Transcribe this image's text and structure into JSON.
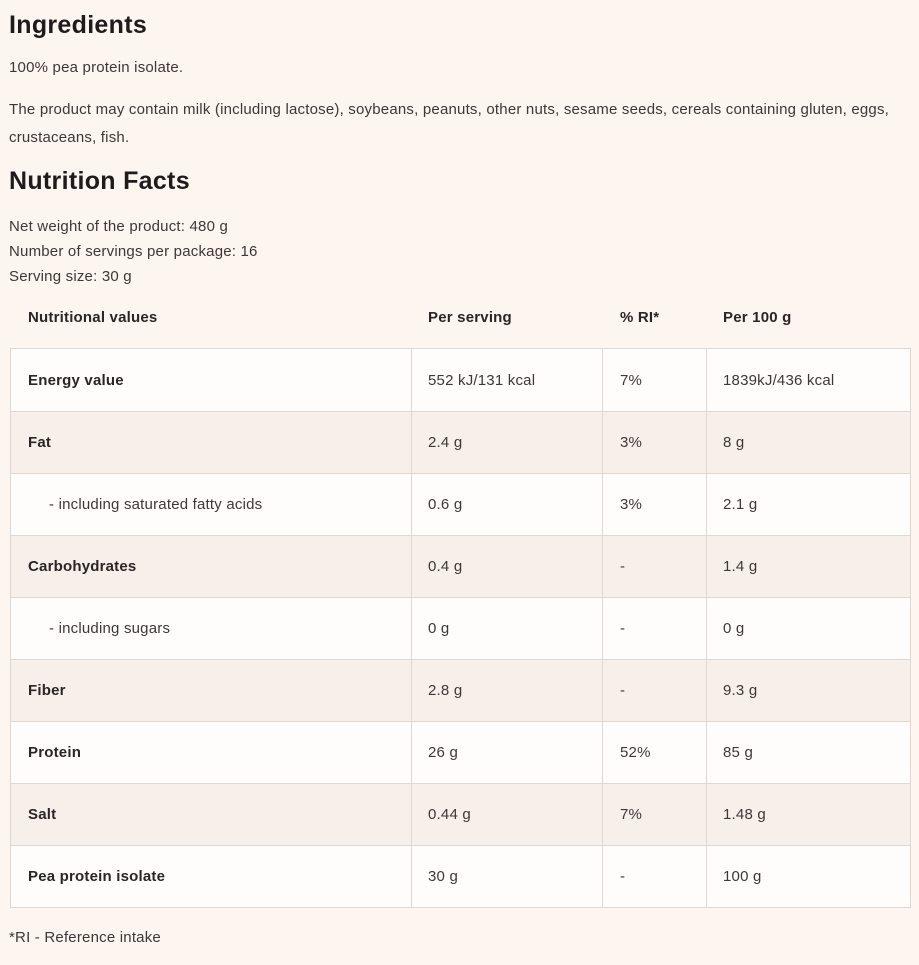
{
  "colors": {
    "page_bg": "#fcf5f0",
    "row_bg": "#fffdfc",
    "row_alt_bg": "#f6efea",
    "table_border": "#e0d7d1",
    "heading_text": "#1d1b1c",
    "body_text": "#3d3738"
  },
  "ingredients": {
    "title": "Ingredients",
    "composition": "100% pea protein isolate.",
    "allergen_note": "The product may contain milk (including lactose), soybeans, peanuts, other nuts, sesame seeds, cereals containing gluten, eggs, crustaceans, fish."
  },
  "nutrition": {
    "title": "Nutrition Facts",
    "net_weight": "Net weight of the product: 480 g",
    "servings_per_package": "Number of servings per package: 16",
    "serving_size": "Serving size: 30 g",
    "footnote": "*RI - Reference intake",
    "table": {
      "headers": [
        "Nutritional values",
        "Per serving",
        "% RI*",
        "Per 100 g"
      ],
      "rows": [
        {
          "label": "Energy value",
          "per_serving": "552 kJ/131 kcal",
          "ri": "7%",
          "per_100g": "1839kJ/436 kcal",
          "indent": false
        },
        {
          "label": "Fat",
          "per_serving": "2.4 g",
          "ri": "3%",
          "per_100g": "8 g",
          "indent": false
        },
        {
          "label": "- including saturated fatty acids",
          "per_serving": "0.6 g",
          "ri": "3%",
          "per_100g": "2.1 g",
          "indent": true
        },
        {
          "label": "Carbohydrates",
          "per_serving": "0.4 g",
          "ri": "-",
          "per_100g": "1.4 g",
          "indent": false
        },
        {
          "label": "- including sugars",
          "per_serving": "0 g",
          "ri": "-",
          "per_100g": "0 g",
          "indent": true
        },
        {
          "label": "Fiber",
          "per_serving": "2.8 g",
          "ri": "-",
          "per_100g": "9.3 g",
          "indent": false
        },
        {
          "label": "Protein",
          "per_serving": "26 g",
          "ri": "52%",
          "per_100g": "85 g",
          "indent": false
        },
        {
          "label": "Salt",
          "per_serving": "0.44 g",
          "ri": "7%",
          "per_100g": "1.48 g",
          "indent": false
        },
        {
          "label": "Pea protein isolate",
          "per_serving": "30 g",
          "ri": "-",
          "per_100g": "100 g",
          "indent": false
        }
      ]
    }
  }
}
